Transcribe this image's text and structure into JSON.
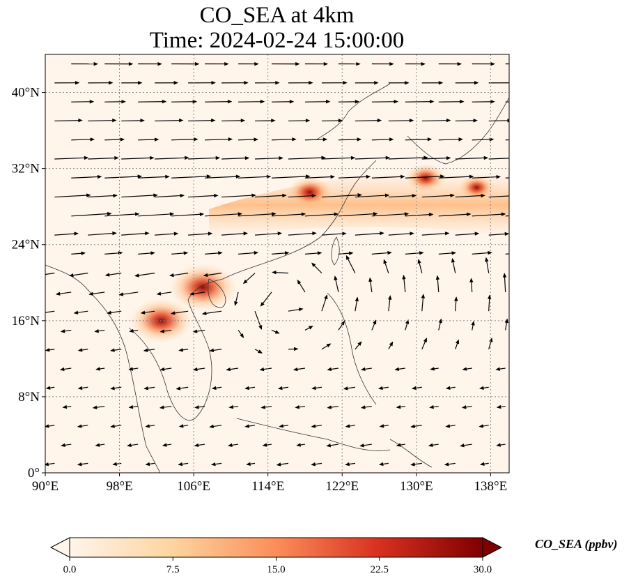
{
  "title_line1": "CO_SEA at 4km",
  "title_line2": "Time: 2024-02-24 15:00:00",
  "map": {
    "lon_range": [
      90,
      140
    ],
    "lat_range": [
      0,
      44
    ],
    "lon_ticks": [
      {
        "value": 90,
        "label": "90°E"
      },
      {
        "value": 98,
        "label": "98°E"
      },
      {
        "value": 106,
        "label": "106°E"
      },
      {
        "value": 114,
        "label": "114°E"
      },
      {
        "value": 122,
        "label": "122°E"
      },
      {
        "value": 130,
        "label": "130°E"
      },
      {
        "value": 138,
        "label": "138°E"
      }
    ],
    "lat_ticks": [
      {
        "value": 0,
        "label": "0°"
      },
      {
        "value": 8,
        "label": "8°N"
      },
      {
        "value": 16,
        "label": "16°N"
      },
      {
        "value": 24,
        "label": "24°N"
      },
      {
        "value": 32,
        "label": "32°N"
      },
      {
        "value": 40,
        "label": "40°N"
      }
    ],
    "gridlines": "dotted",
    "field_colors": {
      "low": "#fff5eb",
      "mid": "#fdae6b",
      "high": "#d94801",
      "max": "#7f0000"
    },
    "plumes": [
      {
        "lon": 107.0,
        "lat": 19.5,
        "value": 24
      },
      {
        "lon": 102.5,
        "lat": 16.0,
        "value": 22
      },
      {
        "lon": 118.5,
        "lat": 29.5,
        "value": 14
      },
      {
        "lon": 131.0,
        "lat": 31.0,
        "value": 12
      },
      {
        "lon": 136.5,
        "lat": 30.0,
        "value": 10
      }
    ]
  },
  "colorbar": {
    "title": "CO_SEA (ppbv)",
    "min": 0.0,
    "max": 30.0,
    "extend": "both",
    "ticks": [
      {
        "value": 0.0,
        "label": "0.0"
      },
      {
        "value": 7.5,
        "label": "7.5"
      },
      {
        "value": 15.0,
        "label": "15.0"
      },
      {
        "value": 22.5,
        "label": "22.5"
      },
      {
        "value": 30.0,
        "label": "30.0"
      }
    ]
  }
}
